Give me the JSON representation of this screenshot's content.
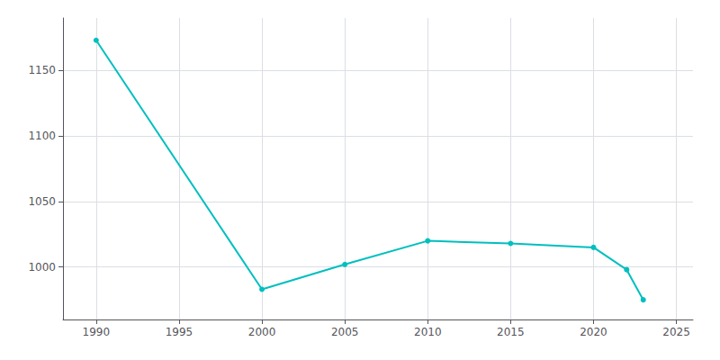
{
  "chart_data": {
    "type": "line",
    "x": [
      1990,
      2000,
      2005,
      2010,
      2015,
      2020,
      2022,
      2023
    ],
    "values": [
      1173,
      983,
      1002,
      1020,
      1018,
      1015,
      998,
      975
    ],
    "color": "#00BFBF",
    "marker": "circle",
    "xlim": [
      1988,
      2026
    ],
    "ylim": [
      960,
      1190
    ],
    "xticks": [
      1990,
      1995,
      2000,
      2005,
      2010,
      2015,
      2020,
      2025
    ],
    "yticks": [
      1000,
      1050,
      1100,
      1150
    ],
    "grid": true
  }
}
